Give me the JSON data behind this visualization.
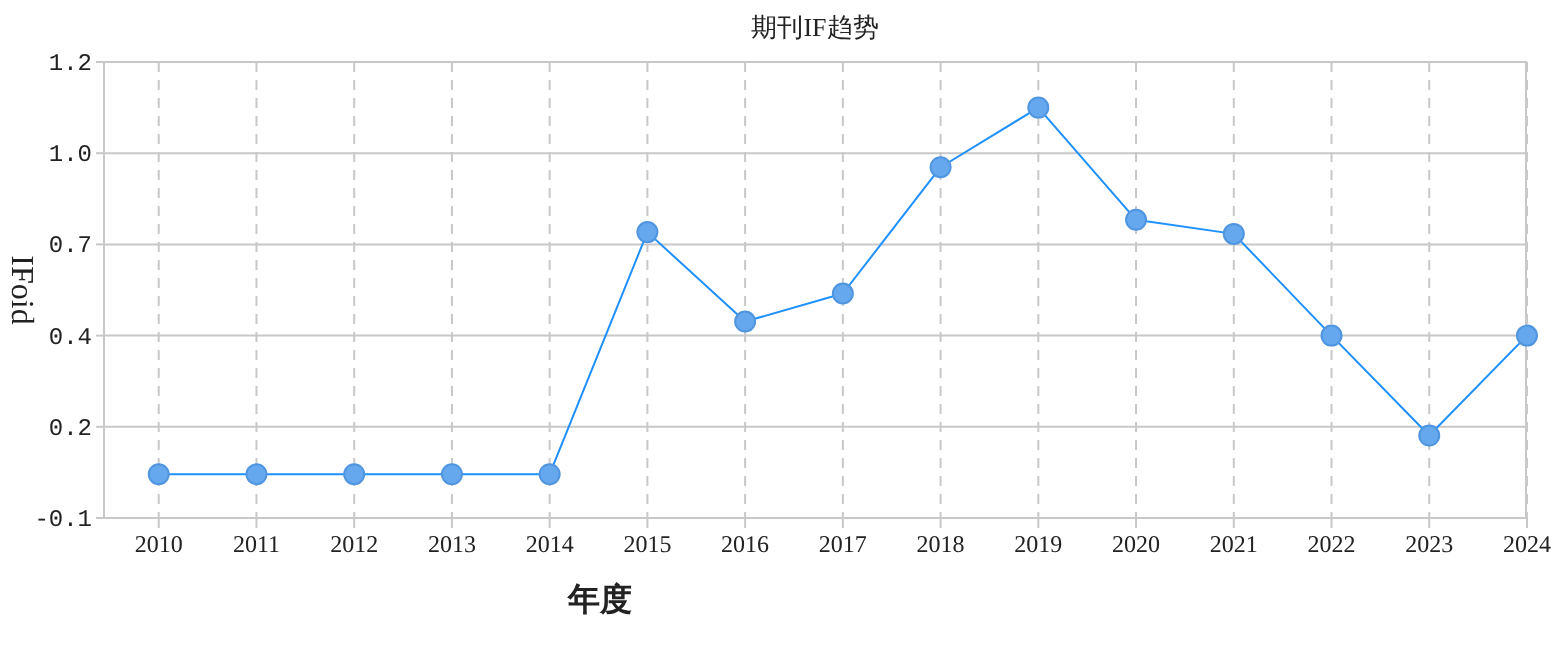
{
  "chart_data": {
    "type": "line",
    "title": "期刊IF趋势",
    "xlabel": "年度",
    "ylabel": "IFoid",
    "categories": [
      "2010",
      "2011",
      "2012",
      "2013",
      "2014",
      "2015",
      "2016",
      "2017",
      "2018",
      "2019",
      "2020",
      "2021",
      "2022",
      "2023",
      "2024"
    ],
    "series": [
      {
        "color": "#1e90ff",
        "values": [
          0.045,
          0.045,
          0.045,
          0.045,
          0.045,
          0.735,
          0.48,
          0.56,
          0.92,
          1.09,
          0.77,
          0.73,
          0.44,
          0.155,
          0.44
        ]
      }
    ],
    "ylim": [
      -0.08,
      1.22
    ],
    "yticks": [
      {
        "value": -0.08,
        "label": "-0.1"
      },
      {
        "value": 0.18,
        "label": "0.2"
      },
      {
        "value": 0.44,
        "label": "0.4"
      },
      {
        "value": 0.7,
        "label": "0.7"
      },
      {
        "value": 0.96,
        "label": "1.0"
      },
      {
        "value": 1.22,
        "label": "1.2"
      }
    ],
    "grid": true,
    "marker": "circle",
    "line_style": "solid"
  }
}
